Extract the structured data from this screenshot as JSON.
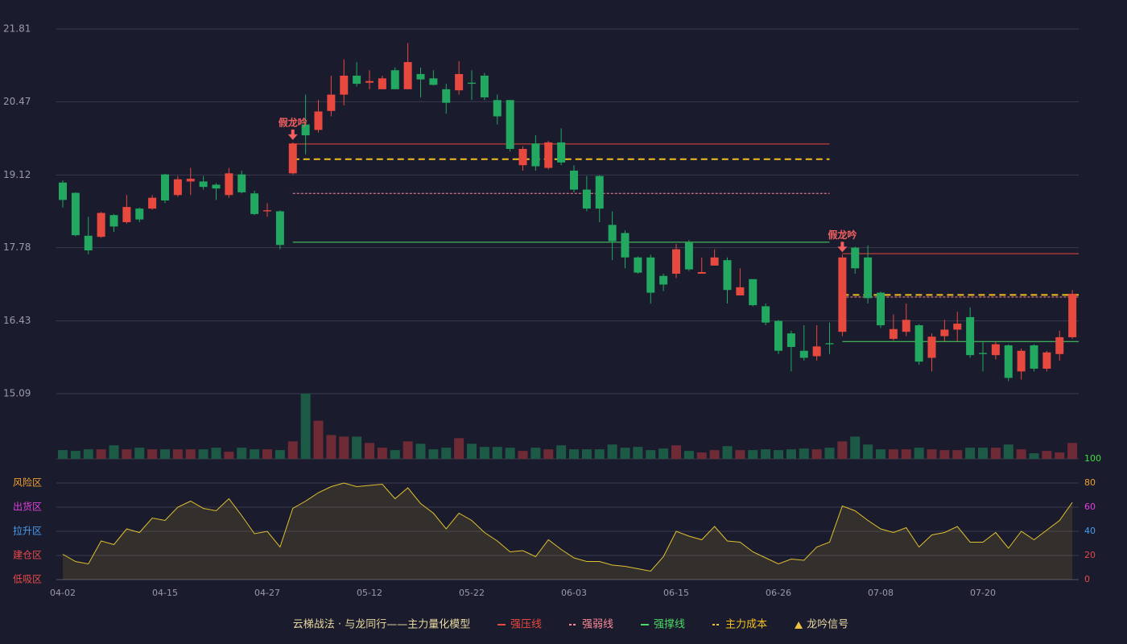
{
  "chart_data": {
    "type": "candlestick",
    "categories": [
      "04-02",
      null,
      null,
      null,
      null,
      null,
      null,
      null,
      "04-15",
      null,
      null,
      null,
      null,
      null,
      null,
      null,
      "04-27",
      null,
      null,
      null,
      null,
      null,
      null,
      null,
      "05-12",
      null,
      null,
      null,
      null,
      null,
      null,
      null,
      "05-22",
      null,
      null,
      null,
      null,
      null,
      null,
      null,
      "06-03",
      null,
      null,
      null,
      null,
      null,
      null,
      null,
      "06-15",
      null,
      null,
      null,
      null,
      null,
      null,
      null,
      "06-26",
      null,
      null,
      null,
      null,
      null,
      null,
      null,
      "07-08",
      null,
      null,
      null,
      null,
      null,
      null,
      null,
      "07-20",
      null,
      null,
      null,
      null,
      null,
      null,
      null
    ],
    "open": [
      18.98,
      18.79,
      18.0,
      17.98,
      18.38,
      18.25,
      18.5,
      18.5,
      19.13,
      18.75,
      19.0,
      19.0,
      18.94,
      18.75,
      19.13,
      18.78,
      18.45,
      18.45,
      19.15,
      20.05,
      19.95,
      20.3,
      20.6,
      20.95,
      20.82,
      20.7,
      21.05,
      20.7,
      20.98,
      20.9,
      20.7,
      20.68,
      20.82,
      20.95,
      20.5,
      20.5,
      19.3,
      19.7,
      19.25,
      19.72,
      19.2,
      18.85,
      19.1,
      18.2,
      18.05,
      17.6,
      17.6,
      17.26,
      17.3,
      17.87,
      17.3,
      17.45,
      17.55,
      16.9,
      17.2,
      16.7,
      16.43,
      16.2,
      15.88,
      15.78,
      16.02,
      16.23,
      17.78,
      17.6,
      16.95,
      16.1,
      16.23,
      16.35,
      15.75,
      16.15,
      16.27,
      16.5,
      15.84,
      15.8,
      15.98,
      15.5,
      15.98,
      15.55,
      15.82,
      16.13
    ],
    "high": [
      19.02,
      18.8,
      18.35,
      18.44,
      18.4,
      18.75,
      18.52,
      18.75,
      19.14,
      19.1,
      19.25,
      19.1,
      18.97,
      19.25,
      19.2,
      18.83,
      18.6,
      18.47,
      19.72,
      20.6,
      20.5,
      20.95,
      21.25,
      21.2,
      21.05,
      20.95,
      21.1,
      21.55,
      21.1,
      21.05,
      20.8,
      21.22,
      21.05,
      21.0,
      20.6,
      20.5,
      19.65,
      19.85,
      19.75,
      19.98,
      19.3,
      19.1,
      19.12,
      18.45,
      18.1,
      17.62,
      17.65,
      17.3,
      17.85,
      17.92,
      17.6,
      17.75,
      17.6,
      17.4,
      17.2,
      16.75,
      16.45,
      16.25,
      16.35,
      16.35,
      16.4,
      17.65,
      17.8,
      17.82,
      16.97,
      16.55,
      16.75,
      16.37,
      16.2,
      16.45,
      16.6,
      16.68,
      16.05,
      16.05,
      16.0,
      15.92,
      16.0,
      15.88,
      16.25,
      17.0
    ],
    "low": [
      18.52,
      17.99,
      17.66,
      17.96,
      18.07,
      18.22,
      18.25,
      18.48,
      18.6,
      18.72,
      18.75,
      18.85,
      18.66,
      18.7,
      18.78,
      18.38,
      18.35,
      17.75,
      19.13,
      19.5,
      19.9,
      20.2,
      20.4,
      20.75,
      20.7,
      20.7,
      20.7,
      20.7,
      20.55,
      20.77,
      20.25,
      20.6,
      20.5,
      20.5,
      20.05,
      19.55,
      19.2,
      19.2,
      19.22,
      19.3,
      18.8,
      18.45,
      18.25,
      17.55,
      17.4,
      17.3,
      16.75,
      16.98,
      17.22,
      17.35,
      17.3,
      17.45,
      16.75,
      16.9,
      16.7,
      16.35,
      15.82,
      15.5,
      15.7,
      15.7,
      15.82,
      16.15,
      17.3,
      16.75,
      16.3,
      16.07,
      16.15,
      15.62,
      15.5,
      16.05,
      16.05,
      15.75,
      15.5,
      15.72,
      15.32,
      15.35,
      15.5,
      15.5,
      15.7,
      16.1
    ],
    "close": [
      18.66,
      18.01,
      17.73,
      18.42,
      18.17,
      18.53,
      18.3,
      18.7,
      18.65,
      19.04,
      19.05,
      18.9,
      18.87,
      19.15,
      18.8,
      18.4,
      18.47,
      17.83,
      19.7,
      19.85,
      20.29,
      20.6,
      20.95,
      20.8,
      20.85,
      20.9,
      20.7,
      21.2,
      20.88,
      20.78,
      20.45,
      20.98,
      20.8,
      20.55,
      20.2,
      19.6,
      19.6,
      19.28,
      19.72,
      19.35,
      18.85,
      18.5,
      18.5,
      17.9,
      17.6,
      17.32,
      16.95,
      17.1,
      17.75,
      17.38,
      17.33,
      17.6,
      17.0,
      17.05,
      16.72,
      16.4,
      15.88,
      15.95,
      15.75,
      15.96,
      16.0,
      17.6,
      17.4,
      16.85,
      16.35,
      16.28,
      16.45,
      15.68,
      16.14,
      16.27,
      16.38,
      15.8,
      15.82,
      16.0,
      15.38,
      15.88,
      15.55,
      15.85,
      16.13,
      16.93
    ],
    "up_color": "#e8493f",
    "down_color": "#22a860",
    "ylim": [
      15.09,
      21.81
    ],
    "yticks": [
      15.09,
      16.43,
      17.78,
      19.12,
      20.47,
      21.81
    ],
    "grid": true,
    "volume": {
      "values": [
        11,
        10,
        12,
        12,
        17,
        12,
        14,
        12,
        12,
        12,
        12,
        12,
        14,
        9,
        14,
        12,
        12,
        11,
        22,
        82,
        48,
        30,
        28,
        28,
        20,
        14,
        11,
        22,
        19,
        12,
        14,
        26,
        19,
        15,
        15,
        14,
        10,
        14,
        12,
        17,
        12,
        12,
        12,
        18,
        14,
        15,
        11,
        13,
        17,
        10,
        8,
        11,
        16,
        11,
        11,
        12,
        11,
        12,
        13,
        12,
        14,
        22,
        28,
        18,
        12,
        12,
        12,
        14,
        12,
        11,
        11,
        14,
        14,
        14,
        18,
        12,
        7,
        10,
        8,
        20
      ],
      "up_color": "#6e2a35",
      "down_color": "#1d5a46"
    },
    "levels": [
      {
        "name": "强压线",
        "color": "#e8493f",
        "style": "solid",
        "segments": [
          {
            "from": 18,
            "to": 60,
            "value": 19.69
          },
          {
            "from": 61,
            "to": 79,
            "value": 17.67
          }
        ]
      },
      {
        "name": "强弱线",
        "color": "#ff8a9a",
        "style": "dotted",
        "segments": [
          {
            "from": 18,
            "to": 60,
            "value": 18.78
          },
          {
            "from": 61,
            "to": 79,
            "value": 16.87
          }
        ]
      },
      {
        "name": "强撑线",
        "color": "#4cd964",
        "style": "solid",
        "segments": [
          {
            "from": 18,
            "to": 60,
            "value": 17.88
          },
          {
            "from": 61,
            "to": 79,
            "value": 16.05
          }
        ]
      },
      {
        "name": "主力成本",
        "color": "#f0c020",
        "style": "dashed",
        "segments": [
          {
            "from": 18,
            "to": 60,
            "value": 19.41
          },
          {
            "from": 61,
            "to": 79,
            "value": 16.91
          }
        ]
      }
    ],
    "signals": {
      "name": "龙吟信号",
      "color": "#f0c040",
      "points": [
        {
          "index": 18,
          "label": "假龙吟"
        },
        {
          "index": 61,
          "label": "假龙吟"
        }
      ]
    },
    "indicator": {
      "type": "line",
      "color": "#e0c030",
      "values": [
        21,
        15,
        13,
        32,
        29,
        42,
        39,
        51,
        49,
        60,
        65,
        59,
        57,
        67,
        53,
        38,
        40,
        27,
        59,
        65,
        72,
        77,
        80,
        77,
        78,
        79,
        67,
        76,
        63,
        55,
        42,
        55,
        49,
        39,
        32,
        23,
        24,
        19,
        33,
        25,
        18,
        15,
        15,
        12,
        11,
        9,
        7,
        19,
        40,
        36,
        33,
        44,
        32,
        31,
        23,
        18,
        13,
        17,
        16,
        27,
        31,
        61,
        57,
        49,
        42,
        39,
        43,
        27,
        37,
        39,
        44,
        31,
        31,
        39,
        26,
        40,
        33,
        41,
        49,
        64
      ],
      "ylim": [
        0,
        100
      ],
      "yticks": [
        0,
        20,
        40,
        60,
        80,
        100
      ],
      "ytick_colors": [
        "#e84a4a",
        "#e84a4a",
        "#4a9cf0",
        "#e040e0",
        "#f0a030",
        "#40e040"
      ],
      "zones": [
        {
          "value": 80,
          "label": "风险区",
          "color": "#f0a030"
        },
        {
          "value": 60,
          "label": "出货区",
          "color": "#e040e0"
        },
        {
          "value": 40,
          "label": "拉升区",
          "color": "#4a9cf0"
        },
        {
          "value": 20,
          "label": "建仓区",
          "color": "#e84a4a"
        },
        {
          "value": 0,
          "label": "低吸区",
          "color": "#e84a4a"
        }
      ]
    },
    "legend_title": "云梯战法 · 与龙同行——主力量化模型"
  }
}
